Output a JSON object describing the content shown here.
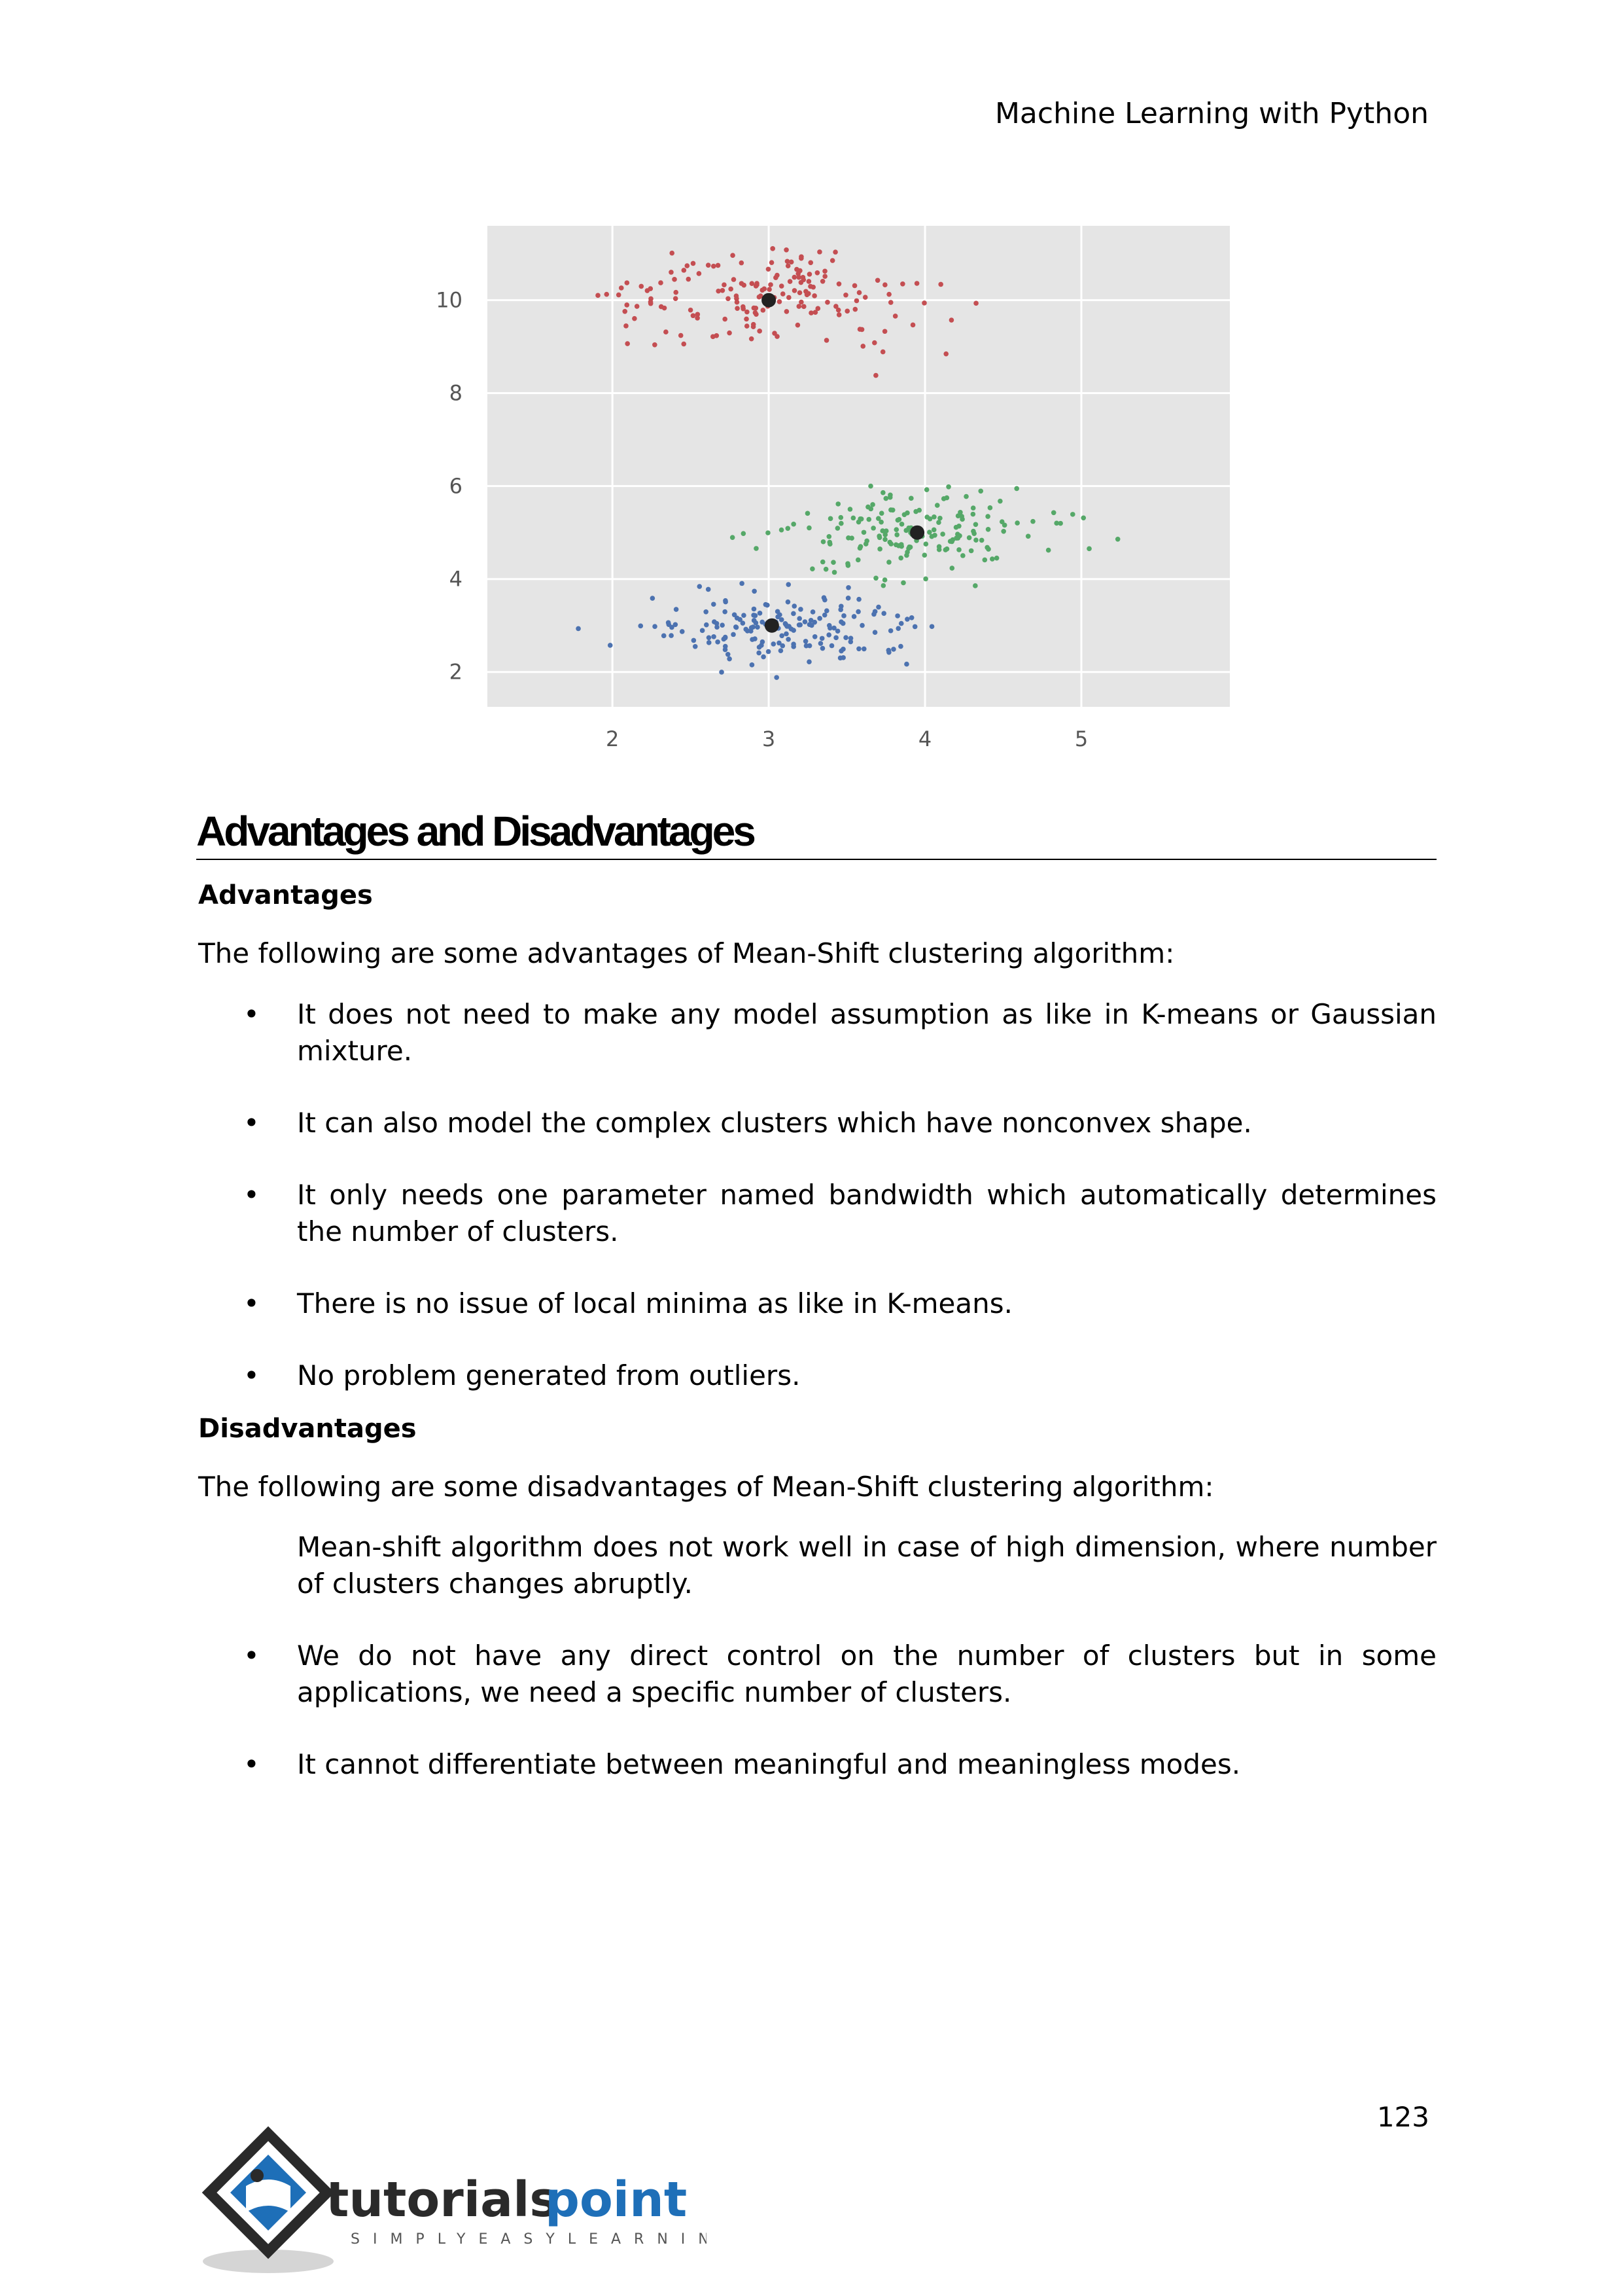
{
  "header": {
    "title": "Machine Learning with Python"
  },
  "chart_data": {
    "type": "scatter",
    "xticks": [
      "2",
      "3",
      "4",
      "5"
    ],
    "yticks": [
      "2",
      "4",
      "6",
      "8",
      "10"
    ],
    "xlim": [
      1.2,
      5.95
    ],
    "ylim": [
      1.25,
      11.6
    ],
    "grid": true,
    "series": [
      {
        "color": "#c44e52",
        "center": [
          3.0,
          10.0
        ]
      },
      {
        "color": "#55a868",
        "center": [
          3.95,
          5.0
        ]
      },
      {
        "color": "#4c72b0",
        "center": [
          3.02,
          3.0
        ]
      }
    ],
    "centroids": [
      {
        "x": 3.0,
        "y": 10.0
      },
      {
        "x": 3.95,
        "y": 5.0
      },
      {
        "x": 3.02,
        "y": 3.0
      }
    ],
    "centroid_color": "#222222"
  },
  "section": {
    "title": "Advantages and Disadvantages"
  },
  "advantages": {
    "heading": "Advantages",
    "intro": "The following are some advantages of Mean-Shift clustering algorithm:",
    "items": [
      "It does not need to make any model assumption as like in K-means or Gaussian mixture.",
      "It can also model the complex clusters which have nonconvex shape.",
      "It only needs one parameter named bandwidth which automatically determines the number of clusters.",
      "There is no issue of local minima as like in K-means.",
      "No problem generated from outliers."
    ]
  },
  "disadvantages": {
    "heading": "Disadvantages",
    "intro": "The following are some disadvantages of Mean-Shift clustering algorithm:",
    "items": [
      "Mean-shift algorithm does not work well in case of high dimension, where number of clusters changes abruptly.",
      "We do not have any direct control on the number of clusters but in some applications, we need a specific number of clusters.",
      "It cannot differentiate between meaningful and meaningless modes."
    ]
  },
  "bullet": "•",
  "footer": {
    "page_number": "123",
    "logo_text_a": "tutorials",
    "logo_text_b": "point",
    "logo_tagline": "SIMPLYEASYLEARNING"
  }
}
